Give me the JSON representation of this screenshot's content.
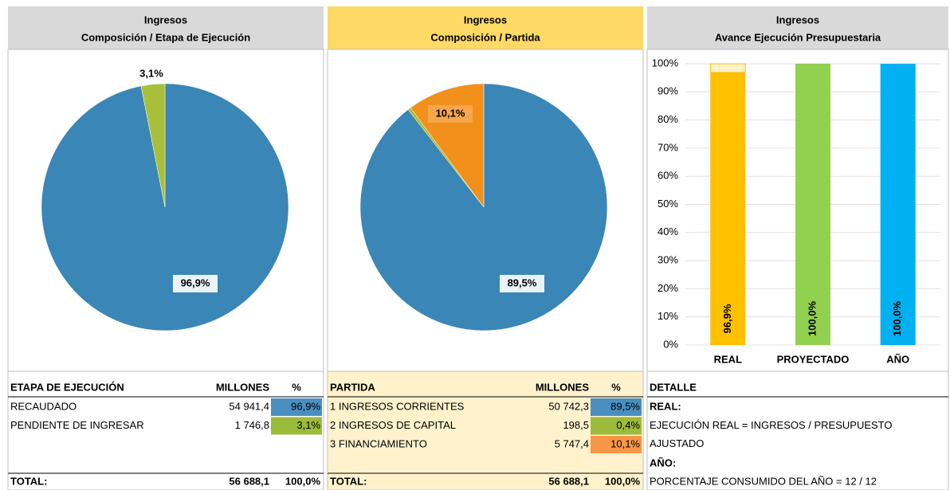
{
  "chart_data": [
    {
      "type": "pie",
      "title": "Ingresos",
      "subtitle": "Composición / Etapa de Ejecución",
      "values": [
        96.9,
        3.1
      ],
      "value_labels": [
        "96,9%",
        "3,1%"
      ],
      "colors": [
        "#3a86b6",
        "#a8bf3c"
      ]
    },
    {
      "type": "pie",
      "title": "Ingresos",
      "subtitle": "Composición / Partida",
      "values": [
        89.5,
        0.4,
        10.1
      ],
      "value_labels": [
        "89,5%",
        null,
        "10,1%"
      ],
      "colors": [
        "#3a86b6",
        "#a8bf3c",
        "#f2901c"
      ]
    },
    {
      "type": "bar",
      "title": "Ingresos",
      "subtitle": "Avance Ejecución Presupuestaria",
      "categories": [
        "REAL",
        "PROYECTADO",
        "AÑO"
      ],
      "series": [
        {
          "values": [
            96.9,
            100,
            100
          ],
          "value_labels": [
            "96,9%",
            "100,0%",
            "100,0%"
          ],
          "colors": [
            "#ffc000",
            "#92d050",
            "#00b0f0"
          ]
        },
        {
          "values": [
            3.1,
            0,
            0
          ],
          "color": "#fff2cc"
        }
      ],
      "ylim": [
        0,
        100
      ],
      "yticks": [
        {
          "value": 0,
          "label": "0%"
        },
        {
          "value": 10,
          "label": "10%"
        },
        {
          "value": 20,
          "label": "20%"
        },
        {
          "value": 30,
          "label": "30%"
        },
        {
          "value": 40,
          "label": "40%"
        },
        {
          "value": 50,
          "label": "50%"
        },
        {
          "value": 60,
          "label": "60%"
        },
        {
          "value": 70,
          "label": "70%"
        },
        {
          "value": 80,
          "label": "80%"
        },
        {
          "value": 90,
          "label": "90%"
        },
        {
          "value": 100,
          "label": "100%"
        }
      ],
      "grid": true
    }
  ],
  "tables": [
    {
      "header": [
        "ETAPA DE EJECUCIÓN",
        "MILLONES",
        "%"
      ],
      "rows": [
        [
          "RECAUDADO",
          "54 941,4",
          "96,9%"
        ],
        [
          "PENDIENTE DE INGRESAR",
          "1 746,8",
          "3,1%"
        ]
      ],
      "percent_colors": [
        "#4a8fc0",
        "#9bbb3b"
      ],
      "total": [
        "TOTAL:",
        "56 688,1",
        "100,0%"
      ]
    },
    {
      "header": [
        "PARTIDA",
        "MILLONES",
        "%"
      ],
      "rows": [
        [
          "1 INGRESOS CORRIENTES",
          "50 742,3",
          "89,5%"
        ],
        [
          "2 INGRESOS DE CAPITAL",
          "198,5",
          "0,4%"
        ],
        [
          "3 FINANCIAMIENTO",
          "5 747,4",
          "10,1%"
        ]
      ],
      "percent_colors": [
        "#4a8fc0",
        "#9bbb3b",
        "#f79646"
      ],
      "total": [
        "TOTAL:",
        "56 688,1",
        "100,0%"
      ]
    },
    {
      "header": [
        "DETALLE"
      ],
      "lines": [
        "REAL:",
        "EJECUCIÓN REAL = INGRESOS / PRESUPUESTO AJUSTADO",
        "AÑO:",
        "PORCENTAJE CONSUMIDO DEL AÑO = 12 / 12"
      ],
      "bold": [
        true,
        false,
        true,
        false
      ]
    }
  ]
}
